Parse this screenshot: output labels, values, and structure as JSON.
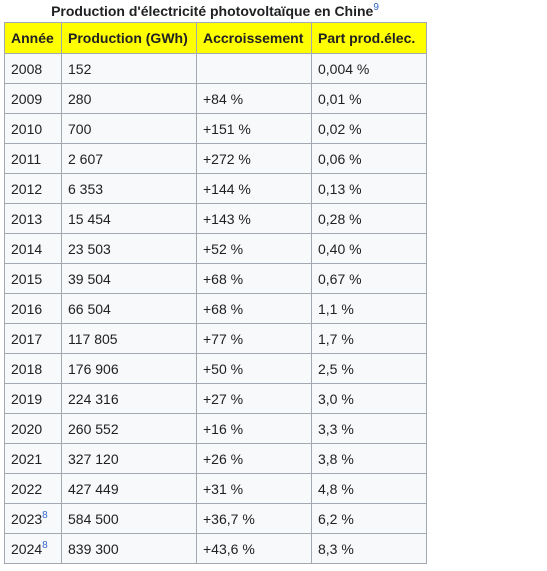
{
  "table": {
    "caption": "Production d'électricité photovoltaïque en Chine",
    "caption_ref": "9",
    "headers": [
      "Année",
      "Production (GWh)",
      "Accroissement",
      "Part prod.élec."
    ],
    "rows": [
      {
        "year": "2008",
        "ref": "",
        "production": "152",
        "growth": "",
        "share": "0,004 %"
      },
      {
        "year": "2009",
        "ref": "",
        "production": "280",
        "growth": "+84 %",
        "share": "0,01 %"
      },
      {
        "year": "2010",
        "ref": "",
        "production": "700",
        "growth": "+151 %",
        "share": "0,02 %"
      },
      {
        "year": "2011",
        "ref": "",
        "production": "2 607",
        "growth": "+272 %",
        "share": "0,06 %"
      },
      {
        "year": "2012",
        "ref": "",
        "production": "6 353",
        "growth": "+144 %",
        "share": "0,13 %"
      },
      {
        "year": "2013",
        "ref": "",
        "production": "15 454",
        "growth": "+143 %",
        "share": "0,28 %"
      },
      {
        "year": "2014",
        "ref": "",
        "production": "23 503",
        "growth": "+52 %",
        "share": "0,40 %"
      },
      {
        "year": "2015",
        "ref": "",
        "production": "39 504",
        "growth": "+68 %",
        "share": "0,67 %"
      },
      {
        "year": "2016",
        "ref": "",
        "production": "66 504",
        "growth": "+68 %",
        "share": "1,1 %"
      },
      {
        "year": "2017",
        "ref": "",
        "production": "117 805",
        "growth": "+77 %",
        "share": "1,7 %"
      },
      {
        "year": "2018",
        "ref": "",
        "production": "176 906",
        "growth": "+50 %",
        "share": "2,5 %"
      },
      {
        "year": "2019",
        "ref": "",
        "production": "224 316",
        "growth": "+27 %",
        "share": "3,0 %"
      },
      {
        "year": "2020",
        "ref": "",
        "production": "260 552",
        "growth": "+16 %",
        "share": "3,3 %"
      },
      {
        "year": "2021",
        "ref": "",
        "production": "327 120",
        "growth": "+26 %",
        "share": "3,8 %"
      },
      {
        "year": "2022",
        "ref": "",
        "production": "427 449",
        "growth": "+31 %",
        "share": "4,8 %"
      },
      {
        "year": "2023",
        "ref": "8",
        "production": "584 500",
        "growth": "+36,7 %",
        "share": "6,2 %"
      },
      {
        "year": "2024",
        "ref": "8",
        "production": "839 300",
        "growth": "+43,6 %",
        "share": "8,3 %"
      }
    ]
  },
  "colors": {
    "header_bg": "#ffff00",
    "cell_bg": "#f8f9fa",
    "border": "#a2a9b1",
    "link": "#3366cc"
  }
}
